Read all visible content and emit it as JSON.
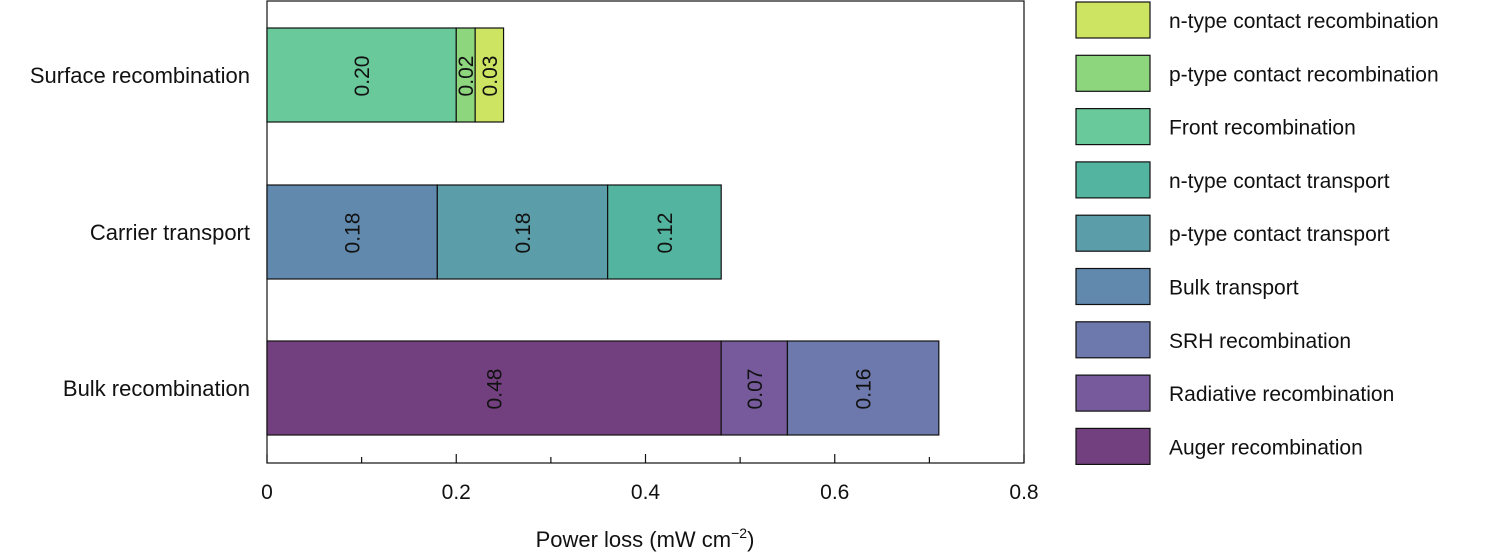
{
  "chart_data": {
    "type": "bar",
    "orientation": "horizontal",
    "stacked": true,
    "xlabel": "Power loss (mW cm",
    "xlabel_sup": "−2",
    "xlabel_close": ")",
    "xlim": [
      0,
      0.8
    ],
    "xticks": [
      "0",
      "0.2",
      "0.4",
      "0.6",
      "0.8"
    ],
    "categories": [
      "Surface recombination",
      "Carrier transport",
      "Bulk recombination"
    ],
    "bars": [
      {
        "category": "Surface recombination",
        "segments": [
          {
            "name": "Front recombination",
            "value": 0.2,
            "label": "0.20"
          },
          {
            "name": "p-type contact recombination",
            "value": 0.02,
            "label": "0.02"
          },
          {
            "name": "n-type contact recombination",
            "value": 0.03,
            "label": "0.03"
          }
        ]
      },
      {
        "category": "Carrier transport",
        "segments": [
          {
            "name": "Bulk transport",
            "value": 0.18,
            "label": "0.18"
          },
          {
            "name": "p-type contact transport",
            "value": 0.18,
            "label": "0.18"
          },
          {
            "name": "n-type contact transport",
            "value": 0.12,
            "label": "0.12"
          }
        ]
      },
      {
        "category": "Bulk recombination",
        "segments": [
          {
            "name": "Auger recombination",
            "value": 0.48,
            "label": "0.48"
          },
          {
            "name": "Radiative recombination",
            "value": 0.07,
            "label": "0.07"
          },
          {
            "name": "SRH recombination",
            "value": 0.16,
            "label": "0.16"
          }
        ]
      }
    ],
    "legend": {
      "position": "right",
      "entries": [
        {
          "name": "n-type contact recombination",
          "color": "#cde462"
        },
        {
          "name": "p-type contact recombination",
          "color": "#8dd67e"
        },
        {
          "name": "Front recombination",
          "color": "#6ac99a"
        },
        {
          "name": "n-type contact transport",
          "color": "#53b5a0"
        },
        {
          "name": "p-type contact transport",
          "color": "#5b9da8"
        },
        {
          "name": "Bulk transport",
          "color": "#6189ad"
        },
        {
          "name": "SRH recombination",
          "color": "#6d79ad"
        },
        {
          "name": "Radiative recombination",
          "color": "#765a9b"
        },
        {
          "name": "Auger recombination",
          "color": "#73407f"
        }
      ]
    },
    "grid": false
  }
}
